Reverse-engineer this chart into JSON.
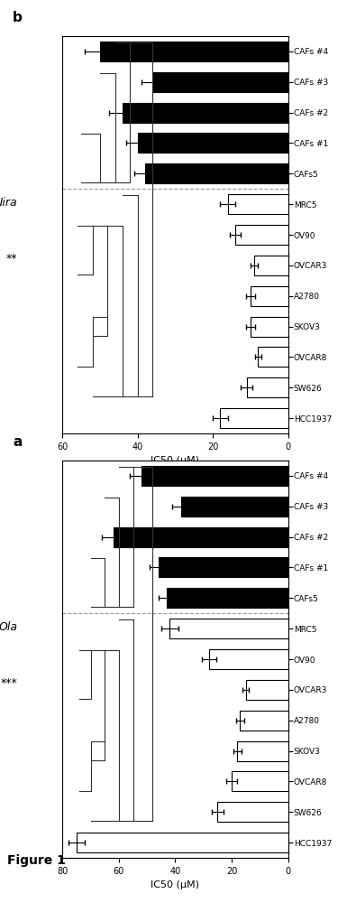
{
  "panel_a": {
    "drug_label": "Ola",
    "sig_label": "***",
    "xlabel": "IC50 (μM)",
    "xlim": [
      0,
      80
    ],
    "xticks": [
      0,
      20,
      40,
      60,
      80
    ],
    "categories": [
      "HCC1937",
      "SW626",
      "OVCAR8",
      "SKOV3",
      "A2780",
      "OVCAR3",
      "OV90",
      "MRC5",
      "CAFs5",
      "CAFs #1",
      "CAFs #2",
      "CAFs #3",
      "CAFs #4"
    ],
    "values": [
      75,
      25,
      20,
      18,
      17,
      15,
      28,
      42,
      43,
      46,
      62,
      38,
      52
    ],
    "errors": [
      3,
      2,
      2,
      1.5,
      1.5,
      1.2,
      2.5,
      3,
      3,
      3,
      4,
      3,
      4
    ],
    "colors": [
      "white",
      "white",
      "white",
      "white",
      "white",
      "white",
      "white",
      "white",
      "black",
      "black",
      "black",
      "black",
      "black"
    ]
  },
  "panel_b": {
    "drug_label": "Nira",
    "sig_label": "**",
    "xlabel": "IC50 (μM)",
    "xlim": [
      0,
      60
    ],
    "xticks": [
      0,
      20,
      40,
      60
    ],
    "categories": [
      "HCC1937",
      "SW626",
      "OVCAR8",
      "SKOV3",
      "A2780",
      "OVCAR3",
      "OV90",
      "MRC5",
      "CAFs5",
      "CAFs #1",
      "CAFs #2",
      "CAFs #3",
      "CAFs #4"
    ],
    "values": [
      18,
      11,
      8,
      10,
      10,
      9,
      14,
      16,
      38,
      40,
      44,
      36,
      50
    ],
    "errors": [
      2,
      1.5,
      0.8,
      1.2,
      1.2,
      1.0,
      1.5,
      2,
      3,
      3,
      3.5,
      3,
      4
    ],
    "colors": [
      "white",
      "white",
      "white",
      "white",
      "white",
      "white",
      "white",
      "white",
      "black",
      "black",
      "black",
      "black",
      "black"
    ]
  },
  "figure_title": "Figure 1",
  "panel_a_label": "a",
  "panel_b_label": "b"
}
